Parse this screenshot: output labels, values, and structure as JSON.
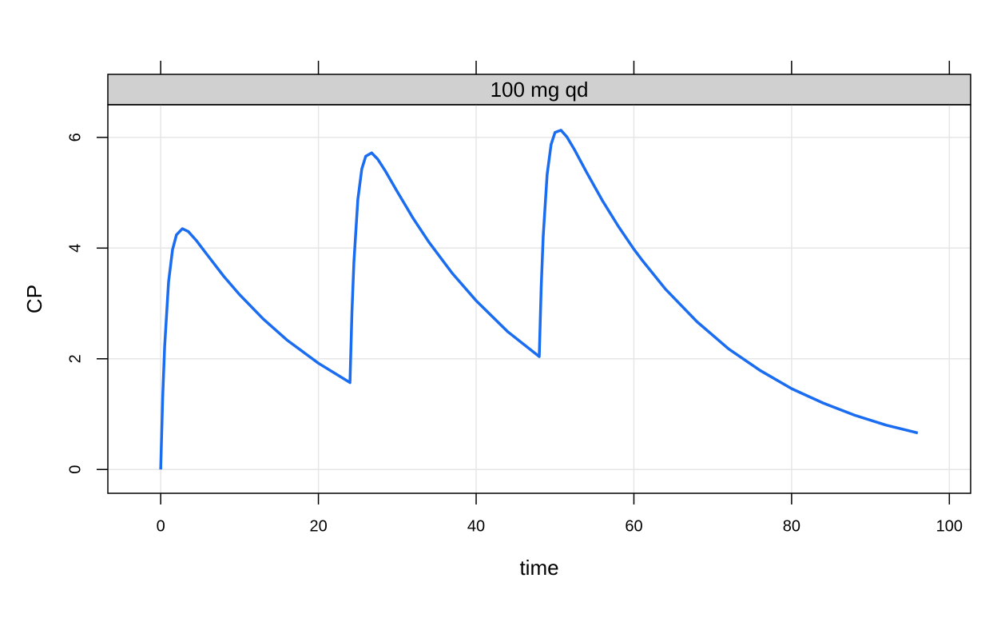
{
  "chart_data": {
    "type": "line",
    "strip_label": "100 mg qd",
    "xlabel": "time",
    "ylabel": "CP",
    "x": [
      0,
      0.25,
      0.5,
      1,
      1.5,
      2,
      2.75,
      3.5,
      4.5,
      6,
      8,
      10,
      13,
      16,
      20,
      24,
      24.25,
      24.5,
      25,
      25.5,
      26,
      26.75,
      27.5,
      28.5,
      30,
      32,
      34,
      37,
      40,
      44,
      48,
      48.25,
      48.5,
      49,
      49.5,
      50,
      50.75,
      51.5,
      52.5,
      54,
      56,
      58,
      60,
      61,
      64,
      68,
      72,
      76,
      80,
      84,
      88,
      92,
      96
    ],
    "values": [
      0,
      1.29,
      2.22,
      3.39,
      3.97,
      4.24,
      4.35,
      4.3,
      4.14,
      3.86,
      3.49,
      3.16,
      2.72,
      2.34,
      1.92,
      1.57,
      2.84,
      3.75,
      4.88,
      5.43,
      5.66,
      5.72,
      5.61,
      5.39,
      5.02,
      4.54,
      4.11,
      3.54,
      3.05,
      2.49,
      2.04,
      3.3,
      4.21,
      5.33,
      5.87,
      6.09,
      6.13,
      6.01,
      5.77,
      5.37,
      4.86,
      4.4,
      3.98,
      3.79,
      3.26,
      2.67,
      2.18,
      1.79,
      1.46,
      1.2,
      0.98,
      0.8,
      0.66
    ],
    "color": "#1a6cf0",
    "xlim": [
      -6.7,
      102.7
    ],
    "ylim": [
      -0.43,
      6.59
    ],
    "xticks": [
      0,
      20,
      40,
      60,
      80,
      100
    ],
    "yticks": [
      0,
      2,
      4,
      6
    ],
    "grid": true
  }
}
